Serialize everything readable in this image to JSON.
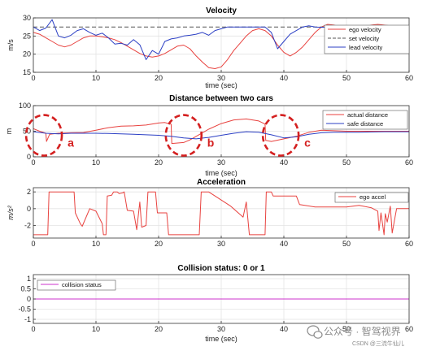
{
  "chart_data": [
    {
      "type": "line",
      "title": "Velocity",
      "ylabel": "m/s",
      "xlabel": "time (sec)",
      "xlim": [
        0,
        60
      ],
      "ylim": [
        15,
        30
      ],
      "xticks": [
        0,
        10,
        20,
        30,
        40,
        50,
        60
      ],
      "yticks": [
        15,
        20,
        25,
        30
      ],
      "grid": true,
      "legend_position": "top-right",
      "series": [
        {
          "name": "ego velocity",
          "color": "#e8423f",
          "style": "solid",
          "x": [
            0,
            1,
            2,
            3,
            4,
            5,
            6,
            7,
            8,
            9,
            10,
            11,
            12,
            13,
            14,
            15,
            16,
            17,
            18,
            19,
            20,
            21,
            22,
            23,
            24,
            25,
            26,
            27,
            28,
            29,
            30,
            31,
            32,
            33,
            34,
            35,
            36,
            37,
            38,
            39,
            40,
            41,
            42,
            43,
            44,
            45,
            46,
            47,
            48,
            49,
            50,
            51,
            52,
            53,
            54,
            55,
            56,
            57,
            58,
            59,
            60
          ],
          "y": [
            26,
            25.5,
            24.5,
            23.5,
            22.5,
            22,
            22.5,
            23.5,
            24.5,
            25,
            25,
            24.8,
            24.5,
            24,
            23.2,
            22.2,
            21.2,
            20.2,
            19.5,
            19.2,
            19.5,
            20.2,
            21.2,
            22.2,
            22.5,
            21.5,
            19.5,
            17.8,
            16.3,
            16,
            16.5,
            18.5,
            21,
            23,
            25,
            26.5,
            27,
            26.5,
            25,
            22.5,
            20.5,
            19.5,
            20.5,
            22,
            24,
            26,
            27.5,
            28.2,
            28,
            27.5,
            27,
            27,
            27.2,
            27.6,
            28,
            28.2,
            28,
            27.8,
            27.6,
            27.4,
            27.2
          ]
        },
        {
          "name": "set velocity",
          "color": "#555555",
          "style": "dashed",
          "x": [
            0,
            60
          ],
          "y": [
            27.5,
            27.5
          ]
        },
        {
          "name": "lead velocity",
          "color": "#2b3fc4",
          "style": "solid",
          "x": [
            0,
            1,
            2,
            3,
            4,
            5,
            6,
            7,
            8,
            9,
            10,
            11,
            12,
            13,
            14,
            15,
            16,
            17,
            18,
            19,
            20,
            21,
            22,
            23,
            24,
            25,
            26,
            27,
            28,
            29,
            30,
            31,
            32,
            33,
            34,
            35,
            36,
            37,
            38,
            39,
            40,
            41,
            42,
            43,
            44,
            45,
            46,
            47,
            48,
            49,
            50,
            51,
            52,
            53,
            54,
            55,
            56,
            57,
            58,
            59,
            60
          ],
          "y": [
            27.5,
            26.5,
            27.2,
            29.5,
            25,
            24.5,
            25.2,
            26.5,
            27,
            26,
            25.2,
            25.8,
            24.5,
            22.8,
            23,
            22.5,
            24,
            22.6,
            18.5,
            21,
            20,
            23.5,
            24.2,
            24.5,
            25,
            25.2,
            25.5,
            26,
            25.2,
            26.5,
            27,
            27.5,
            27.5,
            27.5,
            27.5,
            27.5,
            27.5,
            27.5,
            26,
            21.5,
            23.5,
            25.5,
            26.5,
            27.5,
            27.8,
            27.5,
            27.4,
            27.5,
            27.5,
            27.5,
            27.5,
            27.5,
            27.5,
            27.5,
            27.5,
            27.5,
            27.5,
            27.5,
            27.5,
            27.5,
            27.5
          ]
        }
      ]
    },
    {
      "type": "line",
      "title": "Distance between two cars",
      "ylabel": "m",
      "xlabel": "time (sec)",
      "xlim": [
        0,
        60
      ],
      "ylim": [
        0,
        100
      ],
      "xticks": [
        0,
        10,
        20,
        30,
        40,
        50,
        60
      ],
      "yticks": [
        0,
        50,
        100
      ],
      "grid": true,
      "legend_position": "top-right",
      "series": [
        {
          "name": "actual distance",
          "color": "#e8423f",
          "style": "solid",
          "x": [
            0,
            1,
            2,
            2.1,
            2.6,
            4,
            6,
            8,
            10,
            12,
            14,
            16,
            18,
            20,
            21,
            21.6,
            22,
            22.1,
            24,
            25,
            26,
            28,
            30,
            32,
            34,
            36,
            37,
            37.1,
            38,
            40,
            42,
            44,
            46,
            48,
            50,
            52,
            54,
            56,
            58,
            60
          ],
          "y": [
            55,
            50,
            46,
            30,
            44,
            46,
            47,
            47.5,
            52,
            57,
            60,
            60.5,
            62,
            66,
            67,
            65,
            64,
            26,
            28,
            33,
            40,
            54,
            65,
            72,
            74,
            70,
            64,
            32,
            30,
            35,
            40,
            48,
            52,
            51,
            50,
            50,
            50,
            50,
            50,
            50
          ]
        },
        {
          "name": "safe distance",
          "color": "#2b3fc4",
          "style": "solid",
          "x": [
            0,
            2,
            4,
            6,
            8,
            10,
            12,
            14,
            16,
            18,
            20,
            22,
            24,
            26,
            28,
            30,
            32,
            34,
            36,
            38,
            40,
            42,
            44,
            46,
            48,
            50,
            52,
            54,
            56,
            58,
            60
          ],
          "y": [
            49,
            46,
            45,
            46,
            46,
            46,
            45.5,
            45,
            44,
            43,
            42,
            40,
            37,
            35,
            38,
            42,
            46,
            49,
            48,
            43,
            37,
            39,
            44,
            47,
            48,
            48,
            48,
            48.5,
            49,
            49,
            49
          ]
        }
      ],
      "annotations": [
        {
          "label": "a",
          "x": 1.7,
          "y": 42
        },
        {
          "label": "b",
          "x": 24,
          "y": 42
        },
        {
          "label": "c",
          "x": 39.5,
          "y": 42
        }
      ]
    },
    {
      "type": "line",
      "title": "Acceleration",
      "ylabel": "m/s²",
      "xlabel": "",
      "xlim": [
        0,
        60
      ],
      "ylim": [
        -3.5,
        2.5
      ],
      "xticks": [
        0,
        10,
        20,
        30,
        40,
        50,
        60
      ],
      "yticks": [
        -2,
        0,
        2
      ],
      "grid": true,
      "legend_position": "top-right",
      "series": [
        {
          "name": "ego accel",
          "color": "#e8423f",
          "style": "solid",
          "x": [
            0,
            2.3,
            2.5,
            6.5,
            6.7,
            7.5,
            7.8,
            9,
            10,
            11,
            11.2,
            11.6,
            11.8,
            12.5,
            12.8,
            13.4,
            13.7,
            14.3,
            14.5,
            15,
            16,
            16.5,
            16.7,
            17,
            17.3,
            18,
            18.3,
            19.5,
            19.8,
            21.3,
            21.6,
            26.5,
            26.8,
            28,
            31.5,
            33.5,
            34,
            34.5,
            37,
            37.2,
            38,
            38.3,
            42,
            42.5,
            45,
            46,
            50,
            52,
            54,
            55,
            55.2,
            55.5,
            56,
            56.2,
            56.5,
            57,
            57.3,
            58,
            60
          ],
          "y": [
            -3.1,
            -3.1,
            2,
            2,
            -0.5,
            -1.8,
            -2.1,
            0,
            -0.3,
            -1.8,
            -3.1,
            -3.1,
            1.5,
            1.6,
            2,
            2,
            1.8,
            1.9,
            2,
            -0.2,
            -0.3,
            -2.5,
            -1.2,
            0.8,
            -2.2,
            -2,
            2,
            2,
            -0.5,
            -0.5,
            -3.1,
            -3.1,
            2,
            2,
            0.3,
            -1,
            0.8,
            -3.1,
            -3.1,
            2,
            2,
            1.5,
            1.5,
            0.5,
            0.2,
            0.2,
            0.2,
            0.4,
            0.1,
            -0.3,
            -2.6,
            -0.5,
            -3.1,
            -0.6,
            -1.6,
            0.3,
            -2.9,
            0,
            0
          ]
        }
      ]
    },
    {
      "type": "line",
      "title": "Collision status: 0 or 1",
      "ylabel": "",
      "xlabel": "time (sec)",
      "xlim": [
        0,
        60
      ],
      "ylim": [
        -1.2,
        1.2
      ],
      "xticks": [
        0,
        10,
        20,
        30,
        40,
        50,
        60
      ],
      "yticks": [
        -1,
        -0.5,
        0,
        0.5,
        1
      ],
      "grid": true,
      "legend_position": "top-left",
      "series": [
        {
          "name": "collision status",
          "color": "#cc33cc",
          "style": "solid",
          "x": [
            0,
            60
          ],
          "y": [
            0,
            0
          ]
        }
      ]
    }
  ],
  "watermark": {
    "main": "公众号 · 智驾视界",
    "sub": "CSDN @三流牛仙儿"
  },
  "colors": {
    "annotation": "#d42020",
    "grid": "#e3e3e3"
  }
}
